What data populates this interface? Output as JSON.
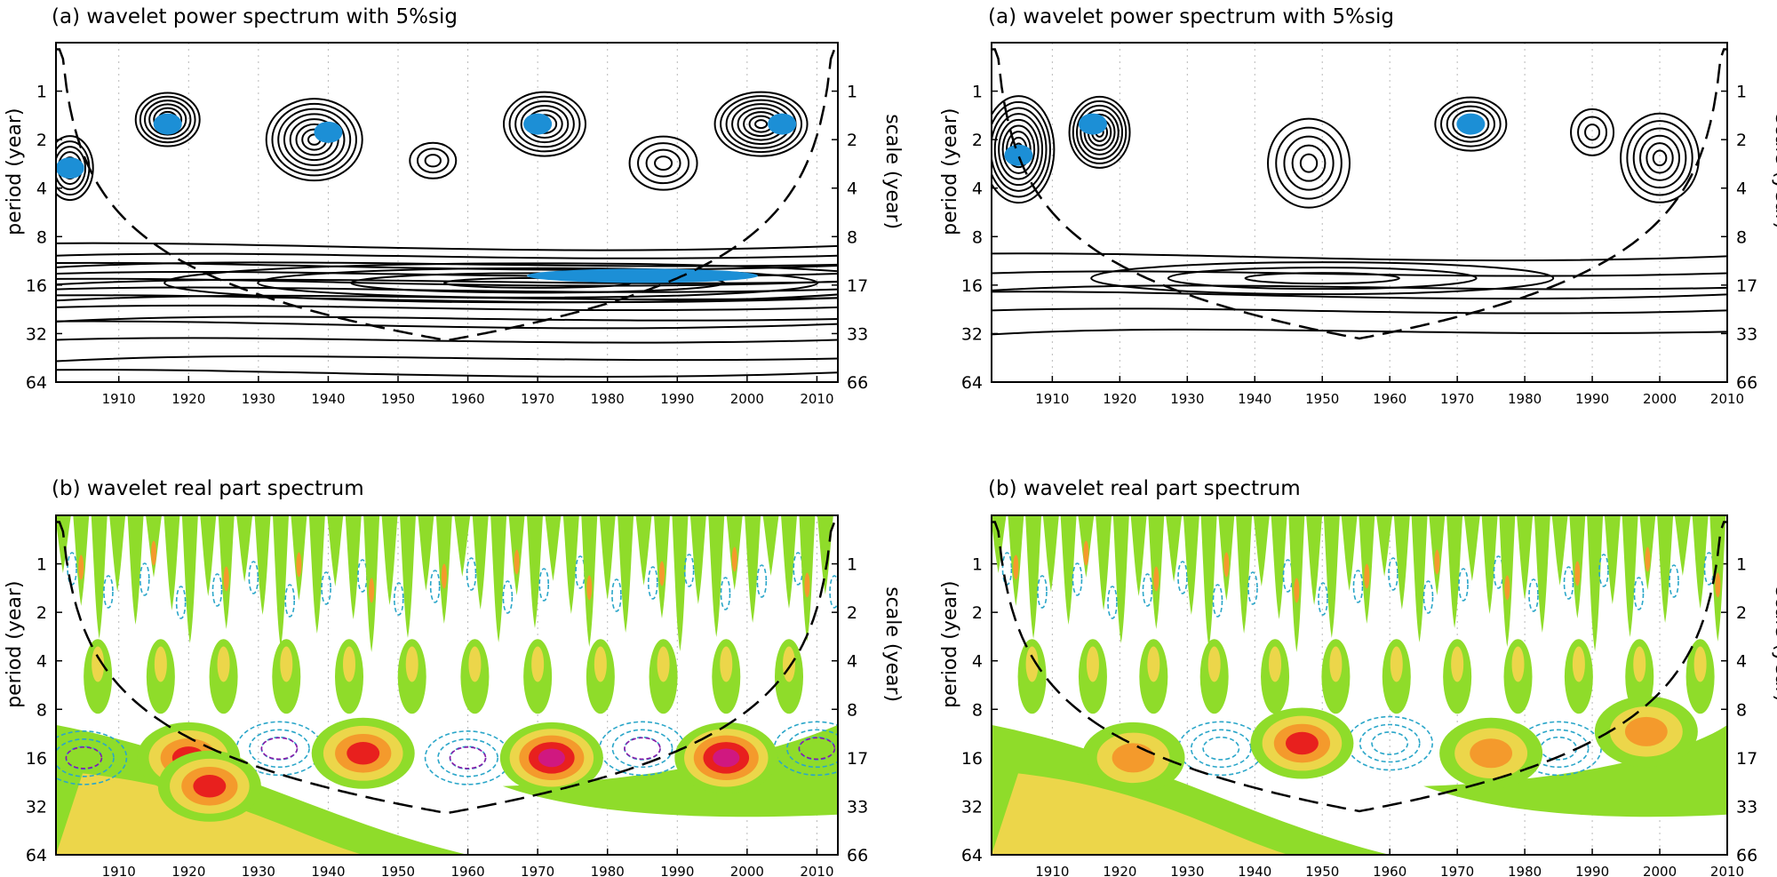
{
  "colors": {
    "sig": "#1c8fd6",
    "green": "#8fdc2a",
    "yellow": "#ecd64a",
    "orange": "#f49a2c",
    "red": "#e8201e",
    "magenta": "#d01880",
    "neg": "#2aa6c9",
    "negDeep": "#8a1aa8"
  },
  "chart_data": [
    {
      "type": "heatmap",
      "id": "power-left",
      "title": "(a) wavelet power spectrum with 5%sig",
      "ylabel": "period (year)",
      "y2label": "scale (year)",
      "xlim": [
        1901,
        2013
      ],
      "ylim_period": [
        0.5,
        64
      ],
      "xticks": [
        "1910",
        "1920",
        "1930",
        "1940",
        "1950",
        "1960",
        "1970",
        "1980",
        "1990",
        "2000",
        "2010"
      ],
      "yticks": [
        "1",
        "2",
        "4",
        "8",
        "16",
        "32",
        "64"
      ],
      "y2ticks": [
        "1",
        "2",
        "4",
        "8",
        "17",
        "33",
        "66"
      ],
      "coi_min_period_year": 1957,
      "significant_regions": [
        {
          "year": 1903,
          "period": 3.0
        },
        {
          "year": 1917,
          "period": 1.6
        },
        {
          "year": 1940,
          "period": 1.8
        },
        {
          "year": 1970,
          "period": 1.6
        },
        {
          "year": 2005,
          "period": 1.6
        },
        {
          "year": 1985,
          "period": 14
        }
      ]
    },
    {
      "type": "heatmap",
      "id": "power-right",
      "title": "(a) wavelet power spectrum with 5%sig",
      "ylabel": "period (year)",
      "y2label": "scale (year)",
      "xlim": [
        1901,
        2010
      ],
      "ylim_period": [
        0.5,
        64
      ],
      "xticks": [
        "1910",
        "1920",
        "1930",
        "1940",
        "1950",
        "1960",
        "1970",
        "1980",
        "1990",
        "2000",
        "2010"
      ],
      "yticks": [
        "1",
        "2",
        "4",
        "8",
        "16",
        "32",
        "64"
      ],
      "y2ticks": [
        "1",
        "2",
        "4",
        "8",
        "17",
        "33",
        "66"
      ],
      "coi_min_period_year": 1956,
      "significant_regions": [
        {
          "year": 1905,
          "period": 2.5
        },
        {
          "year": 1916,
          "period": 1.6
        },
        {
          "year": 1972,
          "period": 1.6
        }
      ]
    },
    {
      "type": "heatmap",
      "id": "real-left",
      "title": "(b) wavelet real part spectrum",
      "ylabel": "period (year)",
      "y2label": "scale (year)",
      "xlim": [
        1901,
        2013
      ],
      "ylim_period": [
        0.5,
        64
      ],
      "xticks": [
        "1910",
        "1920",
        "1930",
        "1940",
        "1950",
        "1960",
        "1970",
        "1980",
        "1990",
        "2000",
        "2010"
      ],
      "yticks": [
        "1",
        "2",
        "4",
        "8",
        "16",
        "32",
        "64"
      ],
      "y2ticks": [
        "1",
        "2",
        "4",
        "8",
        "17",
        "33",
        "66"
      ],
      "positive_centers": [
        {
          "year": 1920,
          "period": 16,
          "level": "red"
        },
        {
          "year": 1923,
          "period": 24,
          "level": "red"
        },
        {
          "year": 1945,
          "period": 15,
          "level": "red"
        },
        {
          "year": 1972,
          "period": 16,
          "level": "magenta"
        },
        {
          "year": 1997,
          "period": 16,
          "level": "magenta"
        }
      ],
      "negative_centers": [
        {
          "year": 1905,
          "period": 16
        },
        {
          "year": 1933,
          "period": 14
        },
        {
          "year": 1960,
          "period": 16
        },
        {
          "year": 1985,
          "period": 14
        },
        {
          "year": 2010,
          "period": 14
        }
      ]
    },
    {
      "type": "heatmap",
      "id": "real-right",
      "title": "(b) wavelet real part spectrum",
      "ylabel": "period (year)",
      "y2label": "scale (year)",
      "xlim": [
        1901,
        2010
      ],
      "ylim_period": [
        0.5,
        64
      ],
      "xticks": [
        "1910",
        "1920",
        "1930",
        "1940",
        "1950",
        "1960",
        "1970",
        "1980",
        "1990",
        "2000",
        "2010"
      ],
      "yticks": [
        "1",
        "2",
        "4",
        "8",
        "16",
        "32",
        "64"
      ],
      "y2ticks": [
        "1",
        "2",
        "4",
        "8",
        "17",
        "33",
        "66"
      ],
      "positive_centers": [
        {
          "year": 1922,
          "period": 16,
          "level": "orange"
        },
        {
          "year": 1947,
          "period": 13,
          "level": "red"
        },
        {
          "year": 1975,
          "period": 15,
          "level": "orange"
        },
        {
          "year": 1998,
          "period": 11,
          "level": "orange"
        }
      ],
      "negative_centers": [
        {
          "year": 1935,
          "period": 14
        },
        {
          "year": 1960,
          "period": 13
        },
        {
          "year": 1985,
          "period": 14
        }
      ]
    }
  ]
}
